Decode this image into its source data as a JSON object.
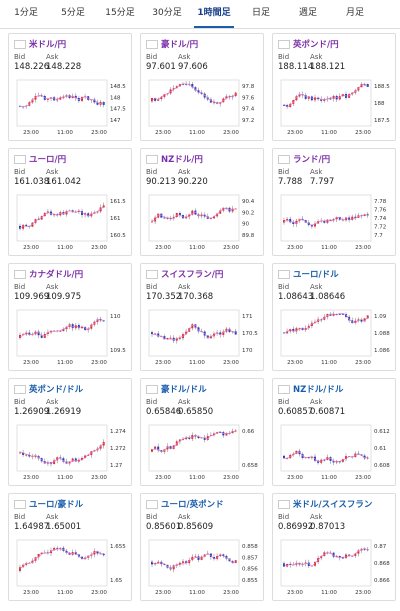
{
  "tabs": [
    "1分足",
    "5分足",
    "15分足",
    "30分足",
    "1時間足",
    "日足",
    "週足",
    "月足"
  ],
  "active_tab": 4,
  "bid_label": "Bid",
  "ask_label": "Ask",
  "time_labels": [
    "23:00",
    "11:00",
    "23:00"
  ],
  "cards": [
    {
      "name": "米ドル/円",
      "bid": "148.226",
      "ask": "148.228",
      "yticks": [
        "148.5",
        "148",
        "147.5",
        "147"
      ],
      "color": "#7b2fa8"
    },
    {
      "name": "豪ドル/円",
      "bid": "97.601",
      "ask": "97.606",
      "yticks": [
        "97.8",
        "97.6",
        "97.4",
        "97.2"
      ],
      "color": "#7b2fa8"
    },
    {
      "name": "英ポンド/円",
      "bid": "188.114",
      "ask": "188.121",
      "yticks": [
        "188.5",
        "188",
        "187.5"
      ],
      "color": "#7b2fa8"
    },
    {
      "name": "ユーロ/円",
      "bid": "161.038",
      "ask": "161.042",
      "yticks": [
        "161.5",
        "161",
        "160.5"
      ],
      "color": "#7b2fa8"
    },
    {
      "name": "NZドル/円",
      "bid": "90.213",
      "ask": "90.220",
      "yticks": [
        "90.4",
        "90.2",
        "90",
        "89.8"
      ],
      "color": "#7b2fa8"
    },
    {
      "name": "ランド/円",
      "bid": "7.788",
      "ask": "7.797",
      "yticks": [
        "7.78",
        "7.76",
        "7.74",
        "7.72",
        "7.7"
      ],
      "color": "#7b2fa8"
    },
    {
      "name": "カナダドル/円",
      "bid": "109.969",
      "ask": "109.975",
      "yticks": [
        "110",
        "109.5"
      ],
      "color": "#7b2fa8"
    },
    {
      "name": "スイスフラン/円",
      "bid": "170.352",
      "ask": "170.368",
      "yticks": [
        "171",
        "170.5",
        "170"
      ],
      "color": "#7b2fa8"
    },
    {
      "name": "ユーロ/ドル",
      "bid": "1.08643",
      "ask": "1.08646",
      "yticks": [
        "1.09",
        "1.088",
        "1.086"
      ],
      "color": "#1a5dab"
    },
    {
      "name": "英ポンド/ドル",
      "bid": "1.26909",
      "ask": "1.26919",
      "yticks": [
        "1.274",
        "1.272",
        "1.27"
      ],
      "color": "#1a5dab"
    },
    {
      "name": "豪ドル/ドル",
      "bid": "0.65846",
      "ask": "0.65850",
      "yticks": [
        "0.66",
        "0.658"
      ],
      "color": "#1a5dab"
    },
    {
      "name": "NZドル/ドル",
      "bid": "0.60857",
      "ask": "0.60871",
      "yticks": [
        "0.612",
        "0.61",
        "0.608"
      ],
      "color": "#1a5dab"
    },
    {
      "name": "ユーロ/豪ドル",
      "bid": "1.64987",
      "ask": "1.65001",
      "yticks": [
        "1.655",
        "1.65"
      ],
      "color": "#1a5dab"
    },
    {
      "name": "ユーロ/英ポンド",
      "bid": "0.85601",
      "ask": "0.85609",
      "yticks": [
        "0.858",
        "0.857",
        "0.856",
        "0.855"
      ],
      "color": "#1a5dab"
    },
    {
      "name": "米ドル/スイスフラン",
      "bid": "0.86992",
      "ask": "0.87013",
      "yticks": [
        "0.87",
        "0.868",
        "0.866"
      ],
      "color": "#1a5dab"
    }
  ]
}
